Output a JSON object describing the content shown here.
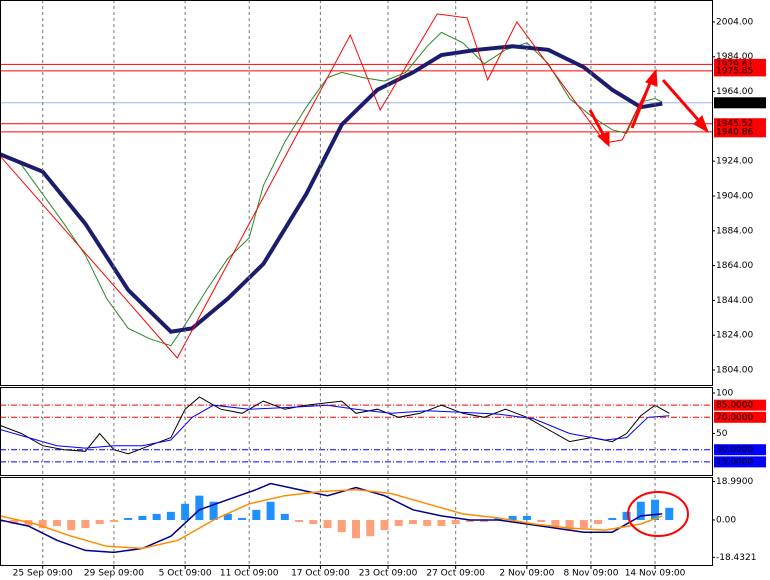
{
  "chart_data": [
    {
      "type": "line",
      "xlim": [
        0,
        100
      ],
      "ylim": [
        1795.4,
        2016.6
      ],
      "grid": true,
      "yticks": [
        {
          "value": 2004,
          "label": "2004.00"
        },
        {
          "value": 1984,
          "label": "1984.00"
        },
        {
          "value": 1964,
          "label": "1964.00"
        },
        {
          "value": 1924,
          "label": "1924.00"
        },
        {
          "value": 1904,
          "label": "1904.00"
        },
        {
          "value": 1884,
          "label": "1884.00"
        },
        {
          "value": 1864,
          "label": "1864.00"
        },
        {
          "value": 1844,
          "label": "1844.00"
        },
        {
          "value": 1824,
          "label": "1824.00"
        },
        {
          "value": 1804,
          "label": "1804.00"
        }
      ],
      "levels": [
        {
          "value": 1979.61,
          "color": "#ff0000"
        },
        {
          "value": 1975.85,
          "color": "#ff0000"
        },
        {
          "value": 1945.52,
          "color": "#ff0000"
        },
        {
          "value": 1940.86,
          "color": "#ff0000"
        }
      ],
      "current_price": 1957.55,
      "current_color": "#9fb6f0",
      "series": [
        {
          "color": "#2a8a2a",
          "width": 1,
          "x": [
            0,
            3,
            6,
            9,
            12,
            15,
            18,
            21,
            24,
            26,
            29,
            32,
            35,
            37,
            40,
            43,
            46,
            48,
            51,
            54,
            57,
            60,
            62,
            65,
            68,
            71,
            74,
            77,
            80,
            83,
            86,
            88,
            90,
            92,
            93
          ],
          "values": [
            1928,
            1922,
            1905,
            1888,
            1870,
            1845,
            1828,
            1822,
            1818,
            1830,
            1850,
            1868,
            1880,
            1910,
            1935,
            1955,
            1972,
            1975,
            1972,
            1970,
            1975,
            1990,
            1998,
            1992,
            1980,
            1988,
            1992,
            1980,
            1960,
            1950,
            1942,
            1940,
            1958,
            1960,
            1958
          ]
        },
        {
          "color": "#1c1c6e",
          "width": 4,
          "x": [
            0,
            6,
            12,
            18,
            24,
            27,
            32,
            37,
            43,
            48,
            53,
            58,
            62,
            67,
            72,
            77,
            82,
            86,
            90,
            93
          ],
          "values": [
            1928,
            1918,
            1888,
            1850,
            1826,
            1828,
            1845,
            1865,
            1905,
            1945,
            1965,
            1975,
            1985,
            1988,
            1990,
            1988,
            1978,
            1965,
            1955,
            1957
          ]
        },
        {
          "color": "#ff0000",
          "width": 1,
          "x": [
            0,
            24.9,
            49.2,
            53.4,
            61.4,
            65.6,
            68.5,
            72.6,
            85,
            87.4,
            92
          ],
          "values": [
            1927,
            1810.9,
            1996.5,
            1953.4,
            2008.6,
            2006.3,
            1970.7,
            2004,
            1934.5,
            1936.2,
            1975.3
          ]
        }
      ]
    },
    {
      "type": "line",
      "xlim": [
        0,
        100
      ],
      "ylim": [
        -1.2,
        107.4
      ],
      "grid": true,
      "yticks": [
        100,
        50
      ],
      "levels": [
        {
          "value": 85,
          "label": "85.0000",
          "color": "#ff0000"
        },
        {
          "value": 70,
          "label": "70.0000",
          "color": "#ff0000"
        },
        {
          "value": 30,
          "label": "30.0000",
          "color": "#0000ff"
        },
        {
          "value": 15,
          "label": "15.0000",
          "color": "#0000ff"
        }
      ],
      "series": [
        {
          "color": "#000000",
          "width": 1,
          "x": [
            0,
            3,
            6,
            9,
            12,
            14,
            16,
            18,
            21,
            24,
            26,
            28,
            31,
            34,
            37,
            40,
            43,
            46,
            48,
            50,
            53,
            56,
            59,
            62,
            65,
            68,
            71,
            74,
            77,
            80,
            83,
            86,
            88,
            90,
            92,
            94
          ],
          "values": [
            60,
            50,
            35,
            30,
            28,
            50,
            30,
            25,
            35,
            45,
            80,
            95,
            80,
            75,
            90,
            80,
            85,
            88,
            90,
            75,
            80,
            70,
            75,
            85,
            75,
            70,
            80,
            70,
            55,
            40,
            45,
            40,
            50,
            72,
            85,
            75
          ]
        },
        {
          "color": "#0000ff",
          "width": 1,
          "x": [
            0,
            4,
            8,
            12,
            16,
            20,
            24,
            27,
            30,
            35,
            40,
            46,
            50,
            55,
            60,
            65,
            70,
            75,
            80,
            85,
            88,
            91,
            94
          ],
          "values": [
            55,
            45,
            35,
            32,
            35,
            35,
            42,
            70,
            85,
            80,
            82,
            85,
            80,
            75,
            78,
            76,
            74,
            68,
            50,
            42,
            45,
            70,
            72
          ]
        }
      ]
    },
    {
      "type": "bar",
      "xlim": [
        0,
        100
      ],
      "ylim": [
        -22.2,
        21.2
      ],
      "grid": true,
      "yticks": [
        {
          "value": 18.99,
          "label": "18.9900"
        },
        {
          "value": 0,
          "label": "0.00"
        },
        {
          "value": -18.4321,
          "label": "-18.4321"
        }
      ],
      "xticks": [
        {
          "value": 6,
          "label": "25 Sep 09:00"
        },
        {
          "value": 16,
          "label": "29 Sep 09:00"
        },
        {
          "value": 26,
          "label": "5 Oct 09:00"
        },
        {
          "value": 35,
          "label": "11 Oct 09:00"
        },
        {
          "value": 45,
          "label": "17 Oct 09:00"
        },
        {
          "value": 54.5,
          "label": "23 Oct 09:00"
        },
        {
          "value": 64,
          "label": "27 Oct 09:00"
        },
        {
          "value": 74,
          "label": "2 Nov 09:00"
        },
        {
          "value": 83,
          "label": "8 Nov 09:00"
        },
        {
          "value": 92,
          "label": "14 Nov 09:00"
        }
      ],
      "x": [
        0,
        2,
        4,
        6,
        8,
        10,
        12,
        14,
        16,
        18,
        20,
        22,
        24,
        26,
        28,
        30,
        32,
        34,
        36,
        38,
        40,
        42,
        44,
        46,
        48,
        50,
        52,
        54,
        56,
        58,
        60,
        62,
        64,
        66,
        68,
        70,
        72,
        74,
        76,
        78,
        80,
        82,
        84,
        86,
        88,
        90,
        92,
        94
      ],
      "values": [
        -1,
        -2,
        -3,
        -4,
        -3,
        -5,
        -4,
        -2,
        -1,
        1,
        2,
        3,
        4,
        8,
        12,
        9,
        3,
        1,
        5,
        9,
        3,
        -1,
        -2,
        -4,
        -6,
        -9,
        -8,
        -5,
        -3,
        -2,
        -3,
        -3,
        -2,
        -1,
        -1,
        1,
        2,
        2,
        -1,
        -3,
        -5,
        -4,
        -2,
        1,
        4,
        9,
        10,
        6
      ],
      "positive_color": "#1e90ff",
      "negative_color": "#ffa07a",
      "series": [
        {
          "color": "#00008b",
          "width": 1.5,
          "x": [
            0,
            4,
            8,
            12,
            16,
            20,
            24,
            28,
            32,
            36,
            38,
            42,
            46,
            50,
            54,
            58,
            62,
            66,
            70,
            74,
            78,
            82,
            86,
            90,
            93
          ],
          "values": [
            0,
            -3,
            -10,
            -15,
            -16,
            -14,
            -8,
            5,
            10,
            15,
            18,
            15,
            12,
            16,
            12,
            5,
            2,
            0,
            0,
            -2,
            -4,
            -6,
            -6,
            2,
            3
          ]
        },
        {
          "color": "#ff8c00",
          "width": 1.5,
          "x": [
            0,
            5,
            10,
            15,
            20,
            25,
            30,
            35,
            40,
            45,
            50,
            55,
            60,
            65,
            70,
            75,
            80,
            85,
            90,
            93
          ],
          "values": [
            2,
            -2,
            -8,
            -13,
            -14,
            -10,
            0,
            8,
            12,
            14,
            15,
            13,
            8,
            3,
            1,
            -2,
            -4,
            -5,
            -2,
            2
          ]
        }
      ]
    }
  ]
}
